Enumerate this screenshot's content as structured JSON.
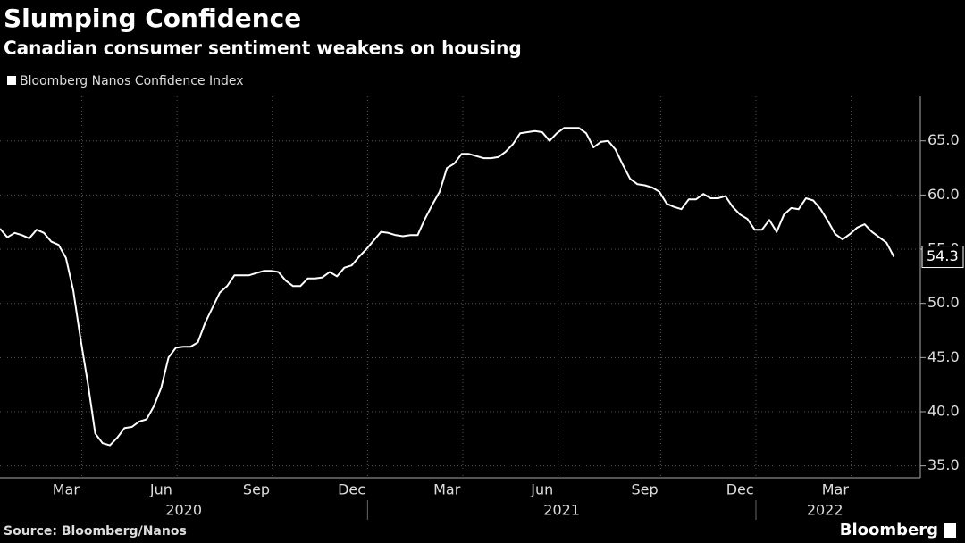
{
  "chart_data": {
    "type": "line",
    "title": "Slumping Confidence",
    "subtitle": "Canadian consumer sentiment weakens on housing",
    "source": "Source: Bloomberg/Nanos",
    "logo": "Bloomberg",
    "categories": [
      null,
      null,
      null,
      null,
      null,
      null,
      null,
      null,
      null,
      "Mar",
      null,
      null,
      null,
      null,
      null,
      null,
      null,
      null,
      null,
      null,
      null,
      null,
      "Jun",
      null,
      null,
      null,
      null,
      null,
      null,
      null,
      null,
      null,
      null,
      null,
      null,
      "Sep",
      null,
      null,
      null,
      null,
      null,
      null,
      null,
      null,
      null,
      null,
      null,
      null,
      "Dec",
      null,
      null,
      null,
      null,
      null,
      null,
      null,
      null,
      null,
      null,
      null,
      null,
      "Mar",
      null,
      null,
      null,
      null,
      null,
      null,
      null,
      null,
      null,
      null,
      null,
      null,
      "Jun",
      null,
      null,
      null,
      null,
      null,
      null,
      null,
      null,
      null,
      null,
      null,
      null,
      null,
      "Sep",
      null,
      null,
      null,
      null,
      null,
      null,
      null,
      null,
      null,
      null,
      null,
      null,
      "Dec",
      null,
      null,
      null,
      null,
      null,
      null,
      null,
      null,
      null,
      null,
      null,
      null,
      "Mar",
      null,
      null,
      null,
      null,
      null,
      null,
      null,
      null
    ],
    "x_groups": [
      {
        "label": "2020",
        "count": 4
      },
      {
        "label": "2021",
        "count": 4
      },
      {
        "label": "2022",
        "count": 1
      }
    ],
    "series": [
      {
        "name": "Bloomberg Nanos Confidence Index",
        "color": "#ffffff",
        "values": [
          56.9,
          56.1,
          56.5,
          56.3,
          56.0,
          56.8,
          56.5,
          55.7,
          55.4,
          54.2,
          51.2,
          46.7,
          42.6,
          38.0,
          37.1,
          36.9,
          37.6,
          38.5,
          38.6,
          39.1,
          39.3,
          40.5,
          42.2,
          45.0,
          45.9,
          46.0,
          46.0,
          46.4,
          48.2,
          49.6,
          51.0,
          51.6,
          52.6,
          52.6,
          52.6,
          52.8,
          53.0,
          53.0,
          52.9,
          52.1,
          51.6,
          51.6,
          52.3,
          52.3,
          52.4,
          52.9,
          52.5,
          53.3,
          53.5,
          54.3,
          55.0,
          55.8,
          56.6,
          56.5,
          56.3,
          56.2,
          56.3,
          56.3,
          57.8,
          59.1,
          60.3,
          62.5,
          62.9,
          63.8,
          63.8,
          63.6,
          63.4,
          63.4,
          63.5,
          64.0,
          64.7,
          65.7,
          65.8,
          65.9,
          65.8,
          65.0,
          65.7,
          66.2,
          66.2,
          66.2,
          65.7,
          64.4,
          64.9,
          65.0,
          64.2,
          62.8,
          61.5,
          61.0,
          60.9,
          60.7,
          60.3,
          59.2,
          58.9,
          58.7,
          59.6,
          59.6,
          60.1,
          59.7,
          59.7,
          59.9,
          58.9,
          58.2,
          57.8,
          56.8,
          56.8,
          57.7,
          56.6,
          58.2,
          58.8,
          58.7,
          59.7,
          59.5,
          58.7,
          57.6,
          56.4,
          55.9,
          56.4,
          57.0,
          57.3,
          56.6,
          56.1,
          55.6,
          54.3
        ]
      }
    ],
    "ylim": [
      33.9,
      69.1
    ],
    "yticks": [
      {
        "value": 35,
        "label": "35.0"
      },
      {
        "value": 40,
        "label": "40.0"
      },
      {
        "value": 45,
        "label": "45.0"
      },
      {
        "value": 50,
        "label": "50.0"
      },
      {
        "value": 55,
        "label": "55.0"
      },
      {
        "value": 60,
        "label": "60.0"
      },
      {
        "value": 65,
        "label": "65.0"
      }
    ],
    "grid": true
  }
}
